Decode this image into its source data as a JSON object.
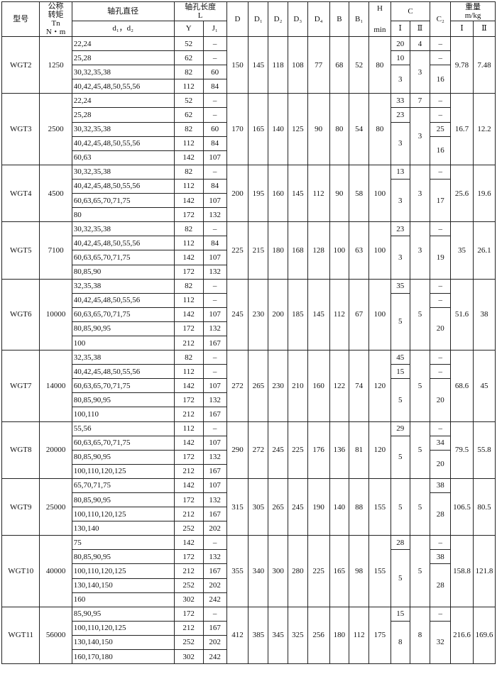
{
  "header": {
    "model": "型号",
    "torque": [
      "公称",
      "转矩",
      "Tn",
      "N・m"
    ],
    "bore_diameter": "轴孔直径",
    "bore_symbols": "d₁，d₂",
    "bore_length": "轴孔长度",
    "bore_length_symbol": "L",
    "Y": "Y",
    "J1": "J₁",
    "D": "D",
    "D1": "D₁",
    "D2": "D₂",
    "D3": "D₃",
    "D4": "D₄",
    "B": "B",
    "B1": "B₁",
    "H": "H",
    "H_unit": "min",
    "C": "C",
    "C_I": "Ⅰ",
    "C_II": "Ⅱ",
    "C2": "C₂",
    "weight": "重量",
    "weight_unit": "m/kg",
    "weight_I": "Ⅰ",
    "weight_II": "Ⅱ"
  },
  "groups": [
    {
      "model": "WGT2",
      "torque": "1250",
      "rows": [
        [
          "22,24",
          "52",
          "–"
        ],
        [
          "25,28",
          "62",
          "–"
        ],
        [
          "30,32,35,38",
          "82",
          "60"
        ],
        [
          "40,42,45,48,50,55,56",
          "112",
          "84"
        ]
      ],
      "dims": [
        "150",
        "145",
        "118",
        "108",
        "77",
        "68",
        "52",
        "80"
      ],
      "c1": [
        "20",
        "10",
        "3"
      ],
      "c2": [
        "4",
        "3"
      ],
      "cc2": [
        "–",
        "–",
        "16"
      ],
      "weight": [
        "9.78",
        "7.48"
      ]
    },
    {
      "model": "WGT3",
      "torque": "2500",
      "rows": [
        [
          "22,24",
          "52",
          "–"
        ],
        [
          "25,28",
          "62",
          "–"
        ],
        [
          "30,32,35,38",
          "82",
          "60"
        ],
        [
          "40,42,45,48,50,55,56",
          "112",
          "84"
        ],
        [
          "60,63",
          "142",
          "107"
        ]
      ],
      "dims": [
        "170",
        "165",
        "140",
        "125",
        "90",
        "80",
        "54",
        "80"
      ],
      "c1": [
        "33",
        "23",
        "3"
      ],
      "c2": [
        "7",
        "3"
      ],
      "cc2": [
        "–",
        "–",
        "25",
        "16"
      ],
      "weight": [
        "16.7",
        "12.2"
      ]
    },
    {
      "model": "WGT4",
      "torque": "4500",
      "rows": [
        [
          "30,32,35,38",
          "82",
          "–"
        ],
        [
          "40,42,45,48,50,55,56",
          "112",
          "84"
        ],
        [
          "60,63,65,70,71,75",
          "142",
          "107"
        ],
        [
          "80",
          "172",
          "132"
        ]
      ],
      "dims": [
        "200",
        "195",
        "160",
        "145",
        "112",
        "90",
        "58",
        "100"
      ],
      "c1": [
        "13",
        "3"
      ],
      "c2": [
        "3"
      ],
      "cc2": [
        "–",
        "17"
      ],
      "weight": [
        "25.6",
        "19.6"
      ]
    },
    {
      "model": "WGT5",
      "torque": "7100",
      "rows": [
        [
          "30,32,35,38",
          "82",
          "–"
        ],
        [
          "40,42,45,48,50,55,56",
          "112",
          "84"
        ],
        [
          "60,63,65,70,71,75",
          "142",
          "107"
        ],
        [
          "80,85,90",
          "172",
          "132"
        ]
      ],
      "dims": [
        "225",
        "215",
        "180",
        "168",
        "128",
        "100",
        "63",
        "100"
      ],
      "c1": [
        "23",
        "3"
      ],
      "c2": [
        "3"
      ],
      "cc2": [
        "–",
        "19"
      ],
      "weight": [
        "35",
        "26.1"
      ]
    },
    {
      "model": "WGT6",
      "torque": "10000",
      "rows": [
        [
          "32,35,38",
          "82",
          "–"
        ],
        [
          "40,42,45,48,50,55,56",
          "112",
          "–"
        ],
        [
          "60,63,65,70,71,75",
          "142",
          "107"
        ],
        [
          "80,85,90,95",
          "172",
          "132"
        ],
        [
          "100",
          "212",
          "167"
        ]
      ],
      "dims": [
        "245",
        "230",
        "200",
        "185",
        "145",
        "112",
        "67",
        "100"
      ],
      "c1": [
        "35",
        "5"
      ],
      "c2": [
        "5"
      ],
      "cc2": [
        "–",
        "–",
        "20"
      ],
      "weight": [
        "51.6",
        "38"
      ]
    },
    {
      "model": "WGT7",
      "torque": "14000",
      "rows": [
        [
          "32,35,38",
          "82",
          "–"
        ],
        [
          "40,42,45,48,50,55,56",
          "112",
          "–"
        ],
        [
          "60,63,65,70,71,75",
          "142",
          "107"
        ],
        [
          "80,85,90,95",
          "172",
          "132"
        ],
        [
          "100,110",
          "212",
          "167"
        ]
      ],
      "dims": [
        "272",
        "265",
        "230",
        "210",
        "160",
        "122",
        "74",
        "120"
      ],
      "c1": [
        "45",
        "15",
        "5"
      ],
      "c2": [
        "5"
      ],
      "cc2": [
        "–",
        "–",
        "20"
      ],
      "weight": [
        "68.6",
        "45"
      ]
    },
    {
      "model": "WGT8",
      "torque": "20000",
      "rows": [
        [
          "55,56",
          "112",
          "–"
        ],
        [
          "60,63,65,70,71,75",
          "142",
          "107"
        ],
        [
          "80,85,90,95",
          "172",
          "132"
        ],
        [
          "100,110,120,125",
          "212",
          "167"
        ]
      ],
      "dims": [
        "290",
        "272",
        "245",
        "225",
        "176",
        "136",
        "81",
        "120"
      ],
      "c1": [
        "29",
        "5"
      ],
      "c2": [
        "5"
      ],
      "cc2": [
        "–",
        "34",
        "20"
      ],
      "weight": [
        "79.5",
        "55.8"
      ]
    },
    {
      "model": "WGT9",
      "torque": "25000",
      "rows": [
        [
          "65,70,71,75",
          "142",
          "107"
        ],
        [
          "80,85,90,95",
          "172",
          "132"
        ],
        [
          "100,110,120,125",
          "212",
          "167"
        ],
        [
          "130,140",
          "252",
          "202"
        ]
      ],
      "dims": [
        "315",
        "305",
        "265",
        "245",
        "190",
        "140",
        "88",
        "155"
      ],
      "c1": [
        "5"
      ],
      "c2": [
        "5"
      ],
      "cc2": [
        "38",
        "28"
      ],
      "weight": [
        "106.5",
        "80.5"
      ]
    },
    {
      "model": "WGT10",
      "torque": "40000",
      "rows": [
        [
          "75",
          "142",
          "–"
        ],
        [
          "80,85,90,95",
          "172",
          "132"
        ],
        [
          "100,110,120,125",
          "212",
          "167"
        ],
        [
          "130,140,150",
          "252",
          "202"
        ],
        [
          "160",
          "302",
          "242"
        ]
      ],
      "dims": [
        "355",
        "340",
        "300",
        "280",
        "225",
        "165",
        "98",
        "155"
      ],
      "c1": [
        "28",
        "5"
      ],
      "c2": [
        "5"
      ],
      "cc2": [
        "–",
        "38",
        "28"
      ],
      "weight": [
        "158.8",
        "121.8"
      ]
    },
    {
      "model": "WGT11",
      "torque": "56000",
      "rows": [
        [
          "85,90,95",
          "172",
          "–"
        ],
        [
          "100,110,120,125",
          "212",
          "167"
        ],
        [
          "130,140,150",
          "252",
          "202"
        ],
        [
          "160,170,180",
          "302",
          "242"
        ]
      ],
      "dims": [
        "412",
        "385",
        "345",
        "325",
        "256",
        "180",
        "112",
        "175"
      ],
      "c1": [
        "15",
        "8"
      ],
      "c2": [
        "8"
      ],
      "cc2": [
        "–",
        "32"
      ],
      "weight": [
        "216.6",
        "169.6"
      ]
    }
  ]
}
